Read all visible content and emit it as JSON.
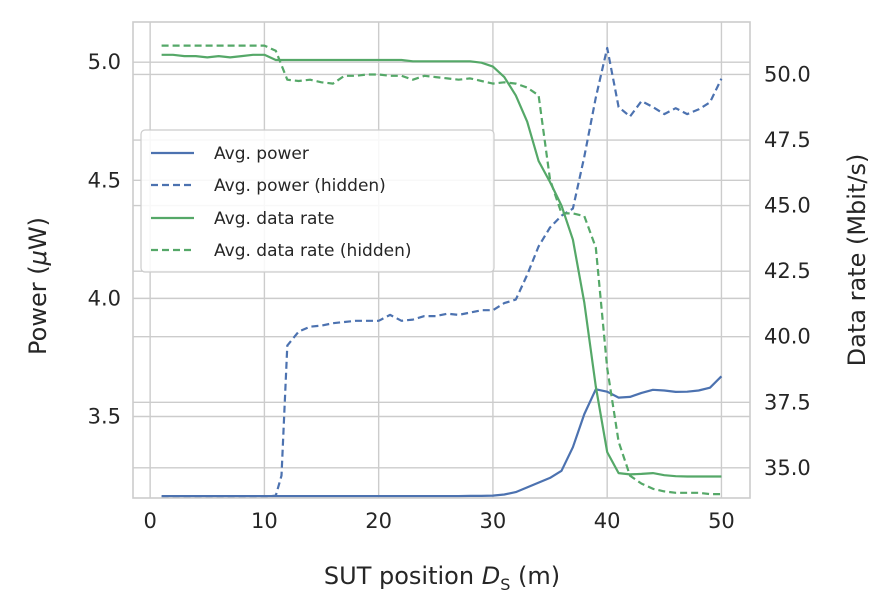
{
  "chart_data": {
    "type": "line",
    "xlabel_main": "SUT position ",
    "xlabel_symbol": "D",
    "xlabel_sub": "S",
    "xlabel_unit": " (m)",
    "ylabel_left_main": "Power (",
    "ylabel_left_symbol": "μ",
    "ylabel_left_unit": "W)",
    "ylabel_right": "Data rate (Mbit/s)",
    "xlim": [
      -1.5,
      52.5
    ],
    "ylim_left": [
      3.155,
      5.17
    ],
    "ylim_right": [
      33.85,
      52.0
    ],
    "x_ticks": [
      0,
      10,
      20,
      30,
      40,
      50
    ],
    "x_tick_labels": [
      "0",
      "10",
      "20",
      "30",
      "40",
      "50"
    ],
    "y_left_ticks": [
      3.5,
      4.0,
      4.5,
      5.0
    ],
    "y_left_tick_labels": [
      "3.5",
      "4.0",
      "4.5",
      "5.0"
    ],
    "y_right_ticks": [
      35.0,
      37.5,
      40.0,
      42.5,
      45.0,
      47.5,
      50.0
    ],
    "y_right_tick_labels": [
      "35.0",
      "37.5",
      "40.0",
      "42.5",
      "45.0",
      "47.5",
      "50.0"
    ],
    "colors": {
      "power": "#4c72b0",
      "rate": "#55a868",
      "grid": "#cccccc",
      "axis": "#cccccc"
    },
    "legend": {
      "placement": "center-left",
      "entries": [
        "Avg. power",
        "Avg. power (hidden)",
        "Avg. data rate",
        "Avg. data rate (hidden)"
      ]
    },
    "series": [
      {
        "name": "Avg. power",
        "axis": "left",
        "style": "solid",
        "colorKey": "power",
        "x": [
          1,
          2,
          3,
          4,
          5,
          6,
          7,
          8,
          9,
          10,
          11,
          12,
          13,
          14,
          15,
          16,
          17,
          18,
          19,
          20,
          21,
          22,
          23,
          24,
          25,
          26,
          27,
          28,
          29,
          30,
          31,
          32,
          33,
          34,
          35,
          36,
          37,
          38,
          39,
          40,
          41,
          42,
          43,
          44,
          45,
          46,
          47,
          48,
          49,
          50
        ],
        "y": [
          3.163,
          3.163,
          3.163,
          3.163,
          3.163,
          3.163,
          3.163,
          3.163,
          3.163,
          3.163,
          3.163,
          3.163,
          3.163,
          3.163,
          3.163,
          3.163,
          3.163,
          3.163,
          3.163,
          3.163,
          3.163,
          3.163,
          3.163,
          3.163,
          3.163,
          3.163,
          3.163,
          3.164,
          3.164,
          3.165,
          3.17,
          3.18,
          3.2,
          3.22,
          3.24,
          3.27,
          3.37,
          3.51,
          3.615,
          3.605,
          3.58,
          3.583,
          3.6,
          3.613,
          3.61,
          3.604,
          3.605,
          3.61,
          3.622,
          3.67
        ]
      },
      {
        "name": "Avg. power (hidden)",
        "axis": "left",
        "style": "dashed",
        "colorKey": "power",
        "x": [
          1,
          2,
          3,
          4,
          5,
          6,
          7,
          8,
          9,
          10,
          11,
          11.5,
          12,
          13,
          14,
          15,
          16,
          17,
          18,
          19,
          20,
          21,
          22,
          23,
          24,
          25,
          26,
          27,
          28,
          29,
          30,
          31,
          32,
          33,
          34,
          35,
          36,
          37,
          38,
          39,
          40,
          41,
          42,
          43,
          44,
          45,
          46,
          47,
          48,
          49,
          50
        ],
        "y": [
          3.16,
          3.16,
          3.16,
          3.16,
          3.16,
          3.16,
          3.16,
          3.16,
          3.16,
          3.16,
          3.165,
          3.25,
          3.8,
          3.86,
          3.88,
          3.885,
          3.895,
          3.9,
          3.905,
          3.905,
          3.905,
          3.93,
          3.905,
          3.91,
          3.925,
          3.925,
          3.935,
          3.93,
          3.94,
          3.95,
          3.95,
          3.98,
          3.995,
          4.1,
          4.22,
          4.3,
          4.35,
          4.38,
          4.6,
          4.85,
          5.06,
          4.81,
          4.77,
          4.835,
          4.81,
          4.78,
          4.805,
          4.78,
          4.8,
          4.83,
          4.93
        ]
      },
      {
        "name": "Avg. data rate",
        "axis": "right",
        "style": "solid",
        "colorKey": "rate",
        "x": [
          1,
          2,
          3,
          4,
          5,
          6,
          7,
          8,
          9,
          10,
          11,
          12,
          13,
          14,
          15,
          16,
          17,
          18,
          19,
          20,
          21,
          22,
          23,
          24,
          25,
          26,
          27,
          28,
          29,
          30,
          31,
          32,
          33,
          34,
          35,
          36,
          37,
          38,
          39,
          40,
          41,
          42,
          43,
          44,
          45,
          46,
          47,
          48,
          49,
          50
        ],
        "y": [
          50.75,
          50.75,
          50.7,
          50.7,
          50.65,
          50.7,
          50.65,
          50.7,
          50.75,
          50.75,
          50.55,
          50.55,
          50.55,
          50.55,
          50.55,
          50.55,
          50.55,
          50.55,
          50.55,
          50.55,
          50.55,
          50.55,
          50.5,
          50.5,
          50.5,
          50.5,
          50.5,
          50.5,
          50.45,
          50.3,
          49.9,
          49.2,
          48.2,
          46.7,
          45.9,
          45.0,
          43.7,
          41.3,
          38.1,
          35.6,
          34.8,
          34.75,
          34.77,
          34.8,
          34.72,
          34.68,
          34.67,
          34.67,
          34.67,
          34.67
        ]
      },
      {
        "name": "Avg. data rate (hidden)",
        "axis": "right",
        "style": "dashed",
        "colorKey": "rate",
        "x": [
          1,
          2,
          3,
          4,
          5,
          6,
          7,
          8,
          9,
          10,
          11,
          12,
          13,
          14,
          15,
          16,
          17,
          18,
          19,
          20,
          21,
          22,
          23,
          24,
          25,
          26,
          27,
          28,
          29,
          30,
          31,
          32,
          33,
          34,
          35,
          36,
          37,
          38,
          39,
          40,
          41,
          42,
          43,
          44,
          45,
          46,
          47,
          48,
          49,
          50
        ],
        "y": [
          51.1,
          51.1,
          51.1,
          51.1,
          51.1,
          51.1,
          51.1,
          51.1,
          51.1,
          51.1,
          50.9,
          49.8,
          49.75,
          49.8,
          49.7,
          49.65,
          49.95,
          49.95,
          50.0,
          50.0,
          49.95,
          49.95,
          49.8,
          49.95,
          49.9,
          49.85,
          49.8,
          49.85,
          49.75,
          49.65,
          49.7,
          49.65,
          49.5,
          49.2,
          46.0,
          44.7,
          44.7,
          44.6,
          43.4,
          38.8,
          36.0,
          34.7,
          34.4,
          34.2,
          34.1,
          34.05,
          34.05,
          34.05,
          34.0,
          34.0
        ]
      }
    ]
  }
}
